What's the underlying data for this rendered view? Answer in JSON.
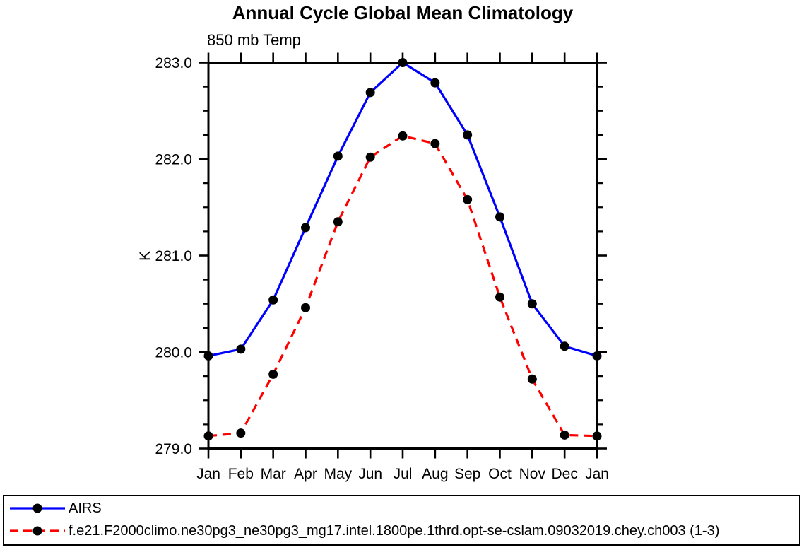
{
  "chart_data": {
    "type": "line",
    "title": "Annual Cycle Global Mean Climatology",
    "subtitle": "850 mb Temp",
    "ylabel": "K",
    "xlabel": "",
    "x_labels": [
      "Jan",
      "Feb",
      "Mar",
      "Apr",
      "May",
      "Jun",
      "Jul",
      "Aug",
      "Sep",
      "Oct",
      "Nov",
      "Dec",
      "Jan"
    ],
    "ylim": [
      279.0,
      283.0
    ],
    "y_major_ticks": [
      279.0,
      280.0,
      281.0,
      282.0,
      283.0
    ],
    "y_tick_labels": [
      "279.0",
      "280.0",
      "281.0",
      "282.0",
      "283.0"
    ],
    "y_minor_step": 0.25,
    "grid": false,
    "legend_position": "bottom-box",
    "axis_color": "#000000",
    "series": [
      {
        "name": "AIRS",
        "color": "#0000ff",
        "style": "solid",
        "marker": "filled-circle",
        "marker_color": "#000000",
        "values": [
          279.96,
          280.03,
          280.54,
          281.29,
          282.03,
          282.69,
          283.0,
          282.79,
          282.25,
          281.4,
          280.5,
          280.06,
          279.96
        ]
      },
      {
        "name": "f.e21.F2000climo.ne30pg3_ne30pg3_mg17.intel.1800pe.1thrd.opt-se-cslam.09032019.chey.ch003 (1-3)",
        "color": "#ff0000",
        "style": "dashed",
        "marker": "filled-circle",
        "marker_color": "#000000",
        "values": [
          279.13,
          279.16,
          279.77,
          280.46,
          281.35,
          282.02,
          282.24,
          282.16,
          281.58,
          280.57,
          279.72,
          279.14,
          279.13
        ]
      }
    ]
  }
}
